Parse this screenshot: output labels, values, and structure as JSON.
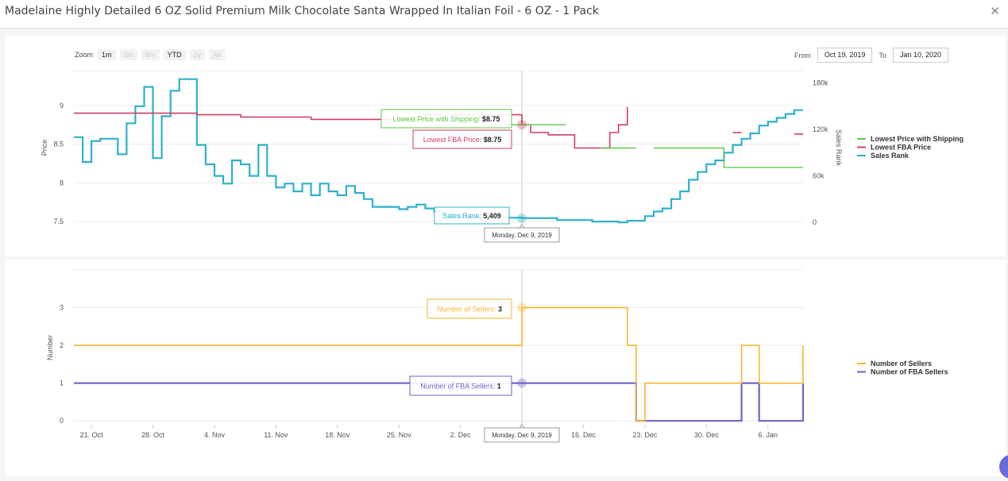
{
  "header": {
    "title": "Madelaine Highly Detailed 6 OZ Solid Premium Milk Chocolate Santa Wrapped In Italian Foil - 6 OZ - 1 Pack",
    "close_icon": "close-icon"
  },
  "toolbar": {
    "zoom_label": "Zoom",
    "zoom_buttons": [
      "1m",
      "3m",
      "6m",
      "YTD",
      "1y",
      "All"
    ],
    "from_label": "From",
    "from_value": "Oct 19, 2019",
    "to_label": "To",
    "to_value": "Jan 10, 2020"
  },
  "colors": {
    "shipping": "#5fc94a",
    "fba": "#d23c64",
    "rank": "#2eb0cc",
    "sellers": "#f7b733",
    "fba_sellers": "#6f63c7"
  },
  "chart_data": [
    {
      "type": "line",
      "ylabel": "Price",
      "y2label": "Sales Rank",
      "ylim": [
        7.45,
        9.45
      ],
      "y2lim": [
        -4000,
        196000
      ],
      "yticks": [
        "7.5",
        "8",
        "8.5",
        "9"
      ],
      "y2ticks": [
        "0",
        "60k",
        "120k",
        "180k"
      ],
      "xlim": [
        "2019-10-19",
        "2020-01-10"
      ],
      "xticks": [
        "21. Oct",
        "28. Oct",
        "4. Nov",
        "11. Nov",
        "18. Nov",
        "25. Nov",
        "2. Dec",
        "9. Dec",
        "16. Dec",
        "23. Dec",
        "30. Dec",
        "6. Jan"
      ],
      "legend": [
        "Lowest Price with Shipping",
        "Lowest FBA Price",
        "Sales Rank"
      ],
      "legend_position": "right",
      "series": [
        {
          "name": "Lowest Price with Shipping",
          "color": "#5fc94a",
          "step": true,
          "segments": [
            [
              [
                "2019-12-07",
                8.75
              ],
              [
                "2019-12-14",
                8.75
              ]
            ],
            [
              [
                "2019-12-18",
                8.45
              ],
              [
                "2019-12-22",
                8.45
              ]
            ],
            [
              [
                "2019-12-24",
                8.45
              ],
              [
                "2020-01-01",
                8.45
              ],
              [
                "2020-01-01",
                8.2
              ],
              [
                "2020-01-10",
                8.2
              ]
            ]
          ]
        },
        {
          "name": "Lowest FBA Price",
          "color": "#d23c64",
          "step": true,
          "segments": [
            [
              [
                "2019-10-19",
                8.9
              ],
              [
                "2019-10-26",
                8.9
              ],
              [
                "2019-11-02",
                8.88
              ],
              [
                "2019-11-07",
                8.85
              ],
              [
                "2019-11-15",
                8.82
              ],
              [
                "2019-11-23",
                8.82
              ],
              [
                "2019-11-28",
                8.88
              ],
              [
                "2019-12-08",
                8.88
              ],
              [
                "2019-12-09",
                8.75
              ],
              [
                "2019-12-10",
                8.65
              ],
              [
                "2019-12-12",
                8.62
              ],
              [
                "2019-12-14",
                8.62
              ],
              [
                "2019-12-15",
                8.45
              ],
              [
                "2019-12-17",
                8.45
              ],
              [
                "2019-12-18",
                8.45
              ],
              [
                "2019-12-19",
                8.65
              ],
              [
                "2019-12-20",
                8.75
              ],
              [
                "2019-12-21",
                8.75
              ],
              [
                "2019-12-21",
                8.98
              ]
            ],
            [
              [
                "2020-01-02",
                8.65
              ],
              [
                "2020-01-03",
                8.65
              ]
            ],
            [
              [
                "2020-01-09",
                8.63
              ],
              [
                "2020-01-10",
                8.63
              ]
            ]
          ]
        },
        {
          "name": "Sales Rank",
          "color": "#2eb0cc",
          "step": true,
          "axis": "right",
          "values": [
            [
              "2019-10-19",
              110000
            ],
            [
              "2019-10-20",
              78000
            ],
            [
              "2019-10-21",
              105000
            ],
            [
              "2019-10-22",
              108000
            ],
            [
              "2019-10-24",
              88000
            ],
            [
              "2019-10-25",
              128000
            ],
            [
              "2019-10-26",
              150000
            ],
            [
              "2019-10-27",
              175000
            ],
            [
              "2019-10-28",
              83000
            ],
            [
              "2019-10-29",
              137000
            ],
            [
              "2019-10-30",
              170000
            ],
            [
              "2019-10-31",
              185000
            ],
            [
              "2019-11-02",
              100000
            ],
            [
              "2019-11-03",
              75000
            ],
            [
              "2019-11-04",
              60000
            ],
            [
              "2019-11-05",
              50000
            ],
            [
              "2019-11-06",
              80000
            ],
            [
              "2019-11-07",
              75000
            ],
            [
              "2019-11-08",
              60000
            ],
            [
              "2019-11-09",
              100000
            ],
            [
              "2019-11-10",
              60000
            ],
            [
              "2019-11-11",
              45000
            ],
            [
              "2019-11-12",
              50000
            ],
            [
              "2019-11-13",
              40000
            ],
            [
              "2019-11-14",
              50000
            ],
            [
              "2019-11-15",
              35000
            ],
            [
              "2019-11-16",
              50000
            ],
            [
              "2019-11-17",
              40000
            ],
            [
              "2019-11-18",
              35000
            ],
            [
              "2019-11-19",
              47000
            ],
            [
              "2019-11-20",
              38000
            ],
            [
              "2019-11-21",
              30000
            ],
            [
              "2019-11-22",
              20000
            ],
            [
              "2019-11-25",
              17000
            ],
            [
              "2019-11-26",
              20000
            ],
            [
              "2019-11-27",
              23000
            ],
            [
              "2019-11-28",
              18000
            ],
            [
              "2019-11-29",
              14000
            ],
            [
              "2019-11-30",
              10000
            ],
            [
              "2019-12-02",
              6000
            ],
            [
              "2019-12-09",
              5409
            ],
            [
              "2019-12-13",
              3000
            ],
            [
              "2019-12-17",
              1000
            ],
            [
              "2019-12-20",
              0
            ],
            [
              "2019-12-21",
              2000
            ],
            [
              "2019-12-23",
              8000
            ],
            [
              "2019-12-24",
              14000
            ],
            [
              "2019-12-25",
              18000
            ],
            [
              "2019-12-26",
              30000
            ],
            [
              "2019-12-27",
              40000
            ],
            [
              "2019-12-28",
              55000
            ],
            [
              "2019-12-29",
              65000
            ],
            [
              "2019-12-30",
              75000
            ],
            [
              "2019-12-31",
              80000
            ],
            [
              "2020-01-01",
              90000
            ],
            [
              "2020-01-02",
              100000
            ],
            [
              "2020-01-03",
              108000
            ],
            [
              "2020-01-04",
              115000
            ],
            [
              "2020-01-05",
              125000
            ],
            [
              "2020-01-06",
              130000
            ],
            [
              "2020-01-07",
              135000
            ],
            [
              "2020-01-08",
              140000
            ],
            [
              "2020-01-09",
              145000
            ],
            [
              "2020-01-10",
              145000
            ]
          ]
        }
      ],
      "tooltip": {
        "date": "Monday, Dec 9, 2019",
        "items": [
          {
            "label": "Lowest Price with Shipping",
            "value": "$8.75"
          },
          {
            "label": "Lowest FBA Price",
            "value": "$8.75"
          },
          {
            "label": "Sales Rank",
            "value": "5,409"
          }
        ]
      }
    },
    {
      "type": "line",
      "ylabel": "Number",
      "ylim": [
        -0.1,
        4.0
      ],
      "yticks": [
        "0",
        "1",
        "2",
        "3"
      ],
      "xlim": [
        "2019-10-19",
        "2020-01-10"
      ],
      "xticks": [
        "21. Oct",
        "28. Oct",
        "4. Nov",
        "11. Nov",
        "18. Nov",
        "25. Nov",
        "2. Dec",
        "9. Dec",
        "16. Dec",
        "23. Dec",
        "30. Dec",
        "6. Jan"
      ],
      "legend": [
        "Number of Sellers",
        "Number of FBA Sellers"
      ],
      "legend_position": "right",
      "series": [
        {
          "name": "Number of Sellers",
          "color": "#f7b733",
          "step": true,
          "values": [
            [
              "2019-10-19",
              2
            ],
            [
              "2019-12-09",
              3
            ],
            [
              "2019-12-21",
              2
            ],
            [
              "2019-12-22",
              0
            ],
            [
              "2019-12-23",
              1
            ],
            [
              "2020-01-03",
              2
            ],
            [
              "2020-01-05",
              1
            ],
            [
              "2020-01-10",
              2
            ]
          ]
        },
        {
          "name": "Number of FBA Sellers",
          "color": "#6f63c7",
          "step": true,
          "values": [
            [
              "2019-10-19",
              1
            ],
            [
              "2019-12-22",
              0
            ],
            [
              "2020-01-03",
              1
            ],
            [
              "2020-01-05",
              0
            ],
            [
              "2020-01-10",
              1
            ]
          ]
        }
      ],
      "tooltip": {
        "date": "Monday, Dec 9, 2019",
        "items": [
          {
            "label": "Number of Sellers",
            "value": "3"
          },
          {
            "label": "Number of FBA Sellers",
            "value": "1"
          }
        ]
      }
    }
  ]
}
